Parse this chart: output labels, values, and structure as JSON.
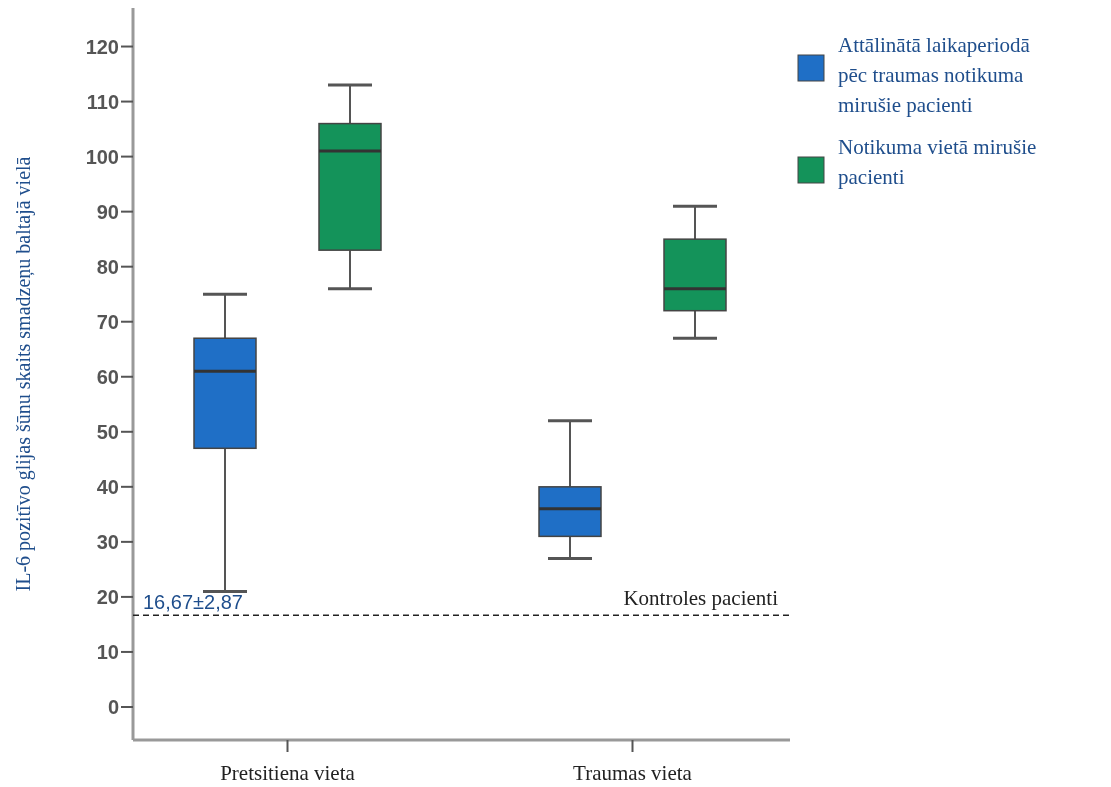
{
  "chart_data": {
    "type": "box",
    "ylabel": "IL-6 pozitīvo glijas šūnu skaits smadzeņu baltajā vielā",
    "categories": [
      "Pretsitiena vieta",
      "Traumas vieta"
    ],
    "series": [
      {
        "name": "Attālinātā laikaperiodā pēc traumas notikuma mirušie pacienti",
        "color": "#1f6fc6",
        "boxes": [
          {
            "low": 21,
            "q1": 47,
            "median": 61,
            "q3": 67,
            "high": 75
          },
          {
            "low": 27,
            "q1": 31,
            "median": 36,
            "q3": 40,
            "high": 52
          }
        ]
      },
      {
        "name": "Notikuma vietā mirušie pacienti",
        "color": "#14935a",
        "boxes": [
          {
            "low": 76,
            "q1": 83,
            "median": 101,
            "q3": 106,
            "high": 113
          },
          {
            "low": 67,
            "q1": 72,
            "median": 76,
            "q3": 85,
            "high": 91
          }
        ]
      }
    ],
    "ylim": [
      -6,
      127
    ],
    "yticks": [
      0,
      10,
      20,
      30,
      40,
      50,
      60,
      70,
      80,
      90,
      100,
      110,
      120
    ],
    "ref_lines": [
      {
        "axis": "y",
        "value": 16.67,
        "label": "16,67±2,87",
        "line_style": "dashed",
        "color": "#222222"
      }
    ],
    "annotations": [
      "Kontroles pacienti"
    ],
    "legend": "right",
    "grid": false
  }
}
